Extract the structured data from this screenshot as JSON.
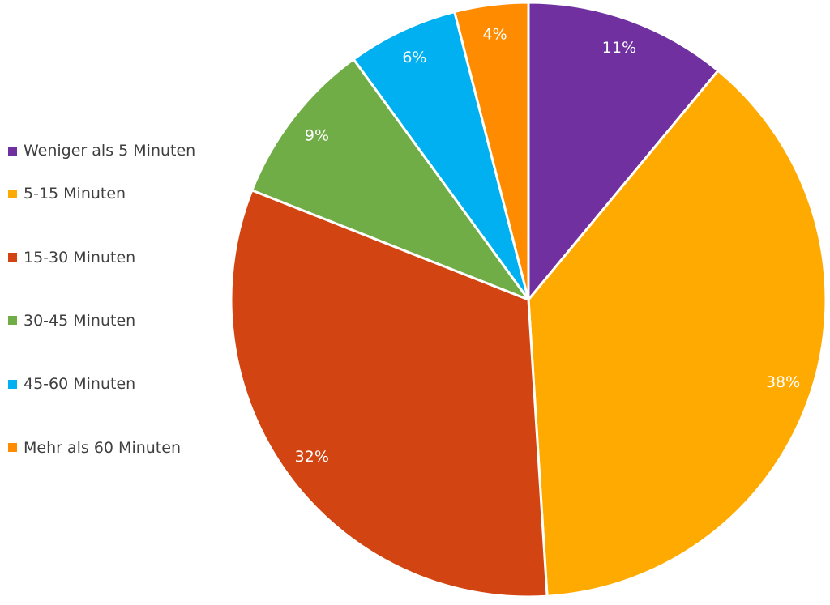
{
  "chart_data": {
    "type": "pie",
    "title": "",
    "start_angle_deg": 0,
    "direction": "clockwise",
    "legend_position": "left",
    "slices": [
      {
        "label": "Weniger als 5 Minuten",
        "value": 11,
        "display": "11%",
        "color": "#7030a0"
      },
      {
        "label": "5-15 Minuten",
        "value": 38,
        "display": "38%",
        "color": "#ffaa00"
      },
      {
        "label": "15-30 Minuten",
        "value": 32,
        "display": "32%",
        "color": "#d24512"
      },
      {
        "label": "30-45 Minuten",
        "value": 9,
        "display": "9%",
        "color": "#70ad47"
      },
      {
        "label": "45-60 Minuten",
        "value": 6,
        "display": "6%",
        "color": "#00b0f0"
      },
      {
        "label": "Mehr als 60 Minuten",
        "value": 4,
        "display": "4%",
        "color": "#ff8c00"
      }
    ]
  }
}
